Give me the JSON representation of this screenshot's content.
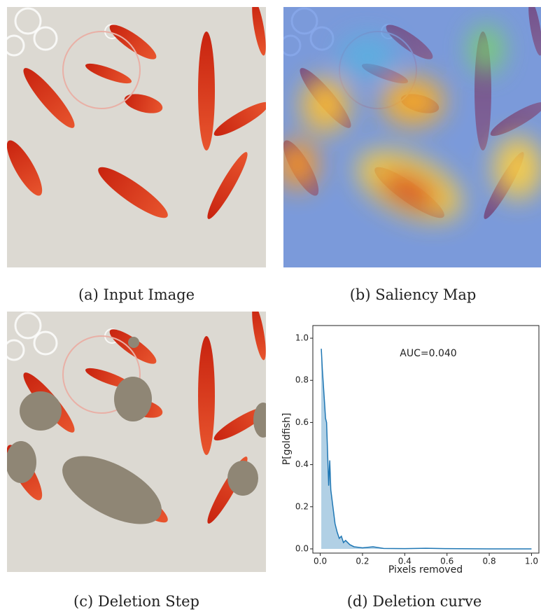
{
  "panels": [
    {
      "caption": "(a) Input Image"
    },
    {
      "caption": "(b) Saliency Map"
    },
    {
      "caption": "(c) Deletion Step"
    },
    {
      "caption": "(d) Deletion curve"
    }
  ],
  "chart_data": {
    "type": "area",
    "annotation": "AUC=0.040",
    "xlabel": "Pixels removed",
    "ylabel": "P[goldfish]",
    "x": [
      0.005,
      0.01,
      0.02,
      0.025,
      0.03,
      0.035,
      0.04,
      0.045,
      0.05,
      0.06,
      0.07,
      0.08,
      0.09,
      0.1,
      0.11,
      0.12,
      0.14,
      0.16,
      0.2,
      0.25,
      0.3,
      0.4,
      0.5,
      0.6,
      0.8,
      1.0
    ],
    "series": [
      {
        "color": "#1f77b4",
        "values": [
          0.95,
          0.85,
          0.7,
          0.62,
          0.6,
          0.45,
          0.3,
          0.42,
          0.28,
          0.2,
          0.12,
          0.08,
          0.05,
          0.06,
          0.03,
          0.04,
          0.02,
          0.01,
          0.005,
          0.01,
          0.002,
          0.001,
          0.003,
          0.001,
          0.0,
          0.0
        ]
      }
    ],
    "xlim": [
      -0.035,
      1.035
    ],
    "ylim": [
      -0.02,
      1.06
    ],
    "xticks": [
      {
        "value": 0,
        "label": "0.0"
      },
      0.2,
      0.4,
      0.6,
      0.8,
      {
        "value": 1,
        "label": "1.0"
      }
    ],
    "yticks": [
      {
        "value": 0,
        "label": "0.0"
      },
      0.2,
      0.4,
      0.6,
      0.8,
      {
        "value": 1,
        "label": "1.0"
      }
    ]
  }
}
